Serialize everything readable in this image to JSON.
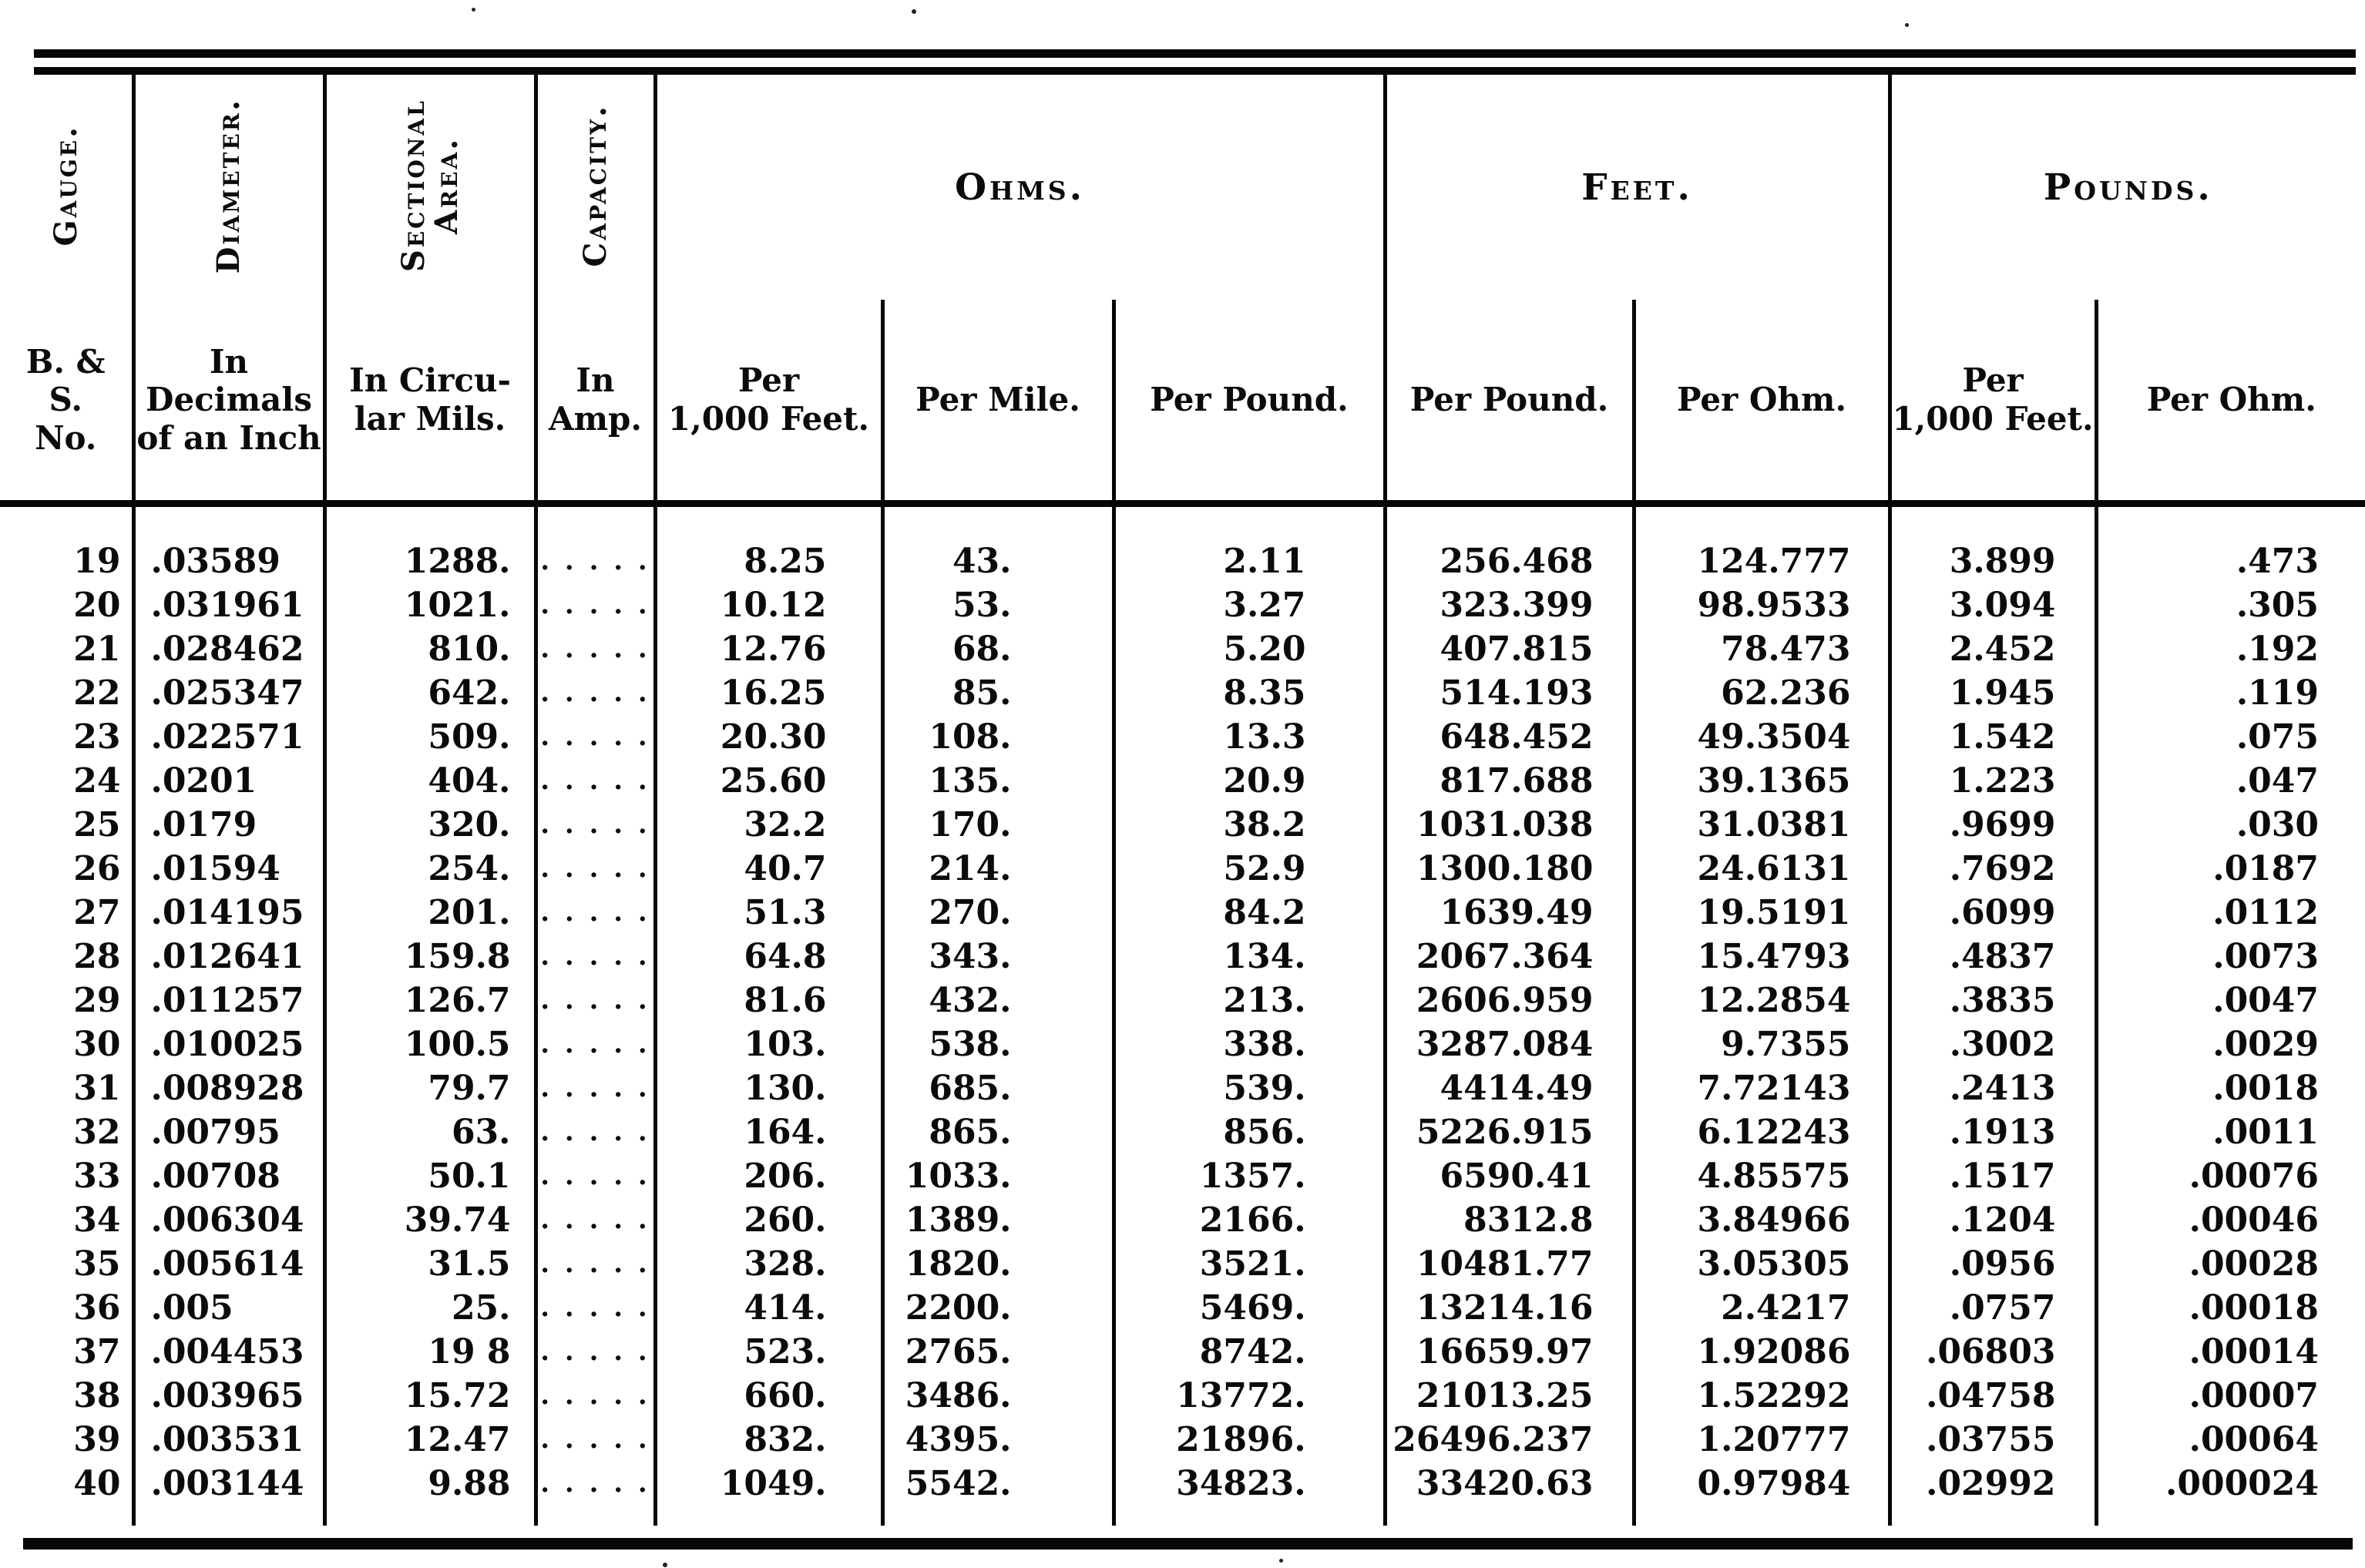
{
  "page": {
    "background": "#ffffff",
    "ink": "#0b0b0b"
  },
  "table": {
    "rotated_headers": [
      "Gauge.",
      "Diameter.",
      "Sectional Area.",
      "Capacity."
    ],
    "groups": [
      {
        "label": "Ohms.",
        "span": 3
      },
      {
        "label": "Feet.",
        "span": 2
      },
      {
        "label": "Pounds.",
        "span": 2
      }
    ],
    "sub_headers": [
      "B. &\nS.\nNo.",
      "In\nDecimals\nof an Inch",
      "In Circu-\nlar Mils.",
      "In\nAmp.",
      "Per\n1,000 Feet.",
      "Per Mile.",
      "Per Pound.",
      "Per Pound.",
      "Per Ohm.",
      "Per\n1,000 Feet.",
      "Per Ohm."
    ],
    "column_ids": [
      "gauge-number",
      "diameter-inches",
      "sectional-area-circular-mils",
      "capacity-amp",
      "ohms-per-1000-feet",
      "ohms-per-mile",
      "ohms-per-pound",
      "feet-per-pound",
      "feet-per-ohm",
      "pounds-per-1000-feet",
      "pounds-per-ohm"
    ],
    "capacity_placeholder": ". . . . .",
    "rows": [
      [
        "19",
        ".03589",
        "1288.",
        ". . . . .",
        "8.25",
        "43.",
        "2.11",
        "256.468",
        "124.777",
        "3.899",
        ".473"
      ],
      [
        "20",
        ".031961",
        "1021.",
        ". . . . .",
        "10.12",
        "53.",
        "3.27",
        "323.399",
        "98.9533",
        "3.094",
        ".305"
      ],
      [
        "21",
        ".028462",
        "810.",
        ". . . . .",
        "12.76",
        "68.",
        "5.20",
        "407.815",
        "78.473",
        "2.452",
        ".192"
      ],
      [
        "22",
        ".025347",
        "642.",
        ". . . . .",
        "16.25",
        "85.",
        "8.35",
        "514.193",
        "62.236",
        "1.945",
        ".119"
      ],
      [
        "23",
        ".022571",
        "509.",
        ". . . . .",
        "20.30",
        "108.",
        "13.3",
        "648.452",
        "49.3504",
        "1.542",
        ".075"
      ],
      [
        "24",
        ".0201",
        "404.",
        ". . . . .",
        "25.60",
        "135.",
        "20.9",
        "817.688",
        "39.1365",
        "1.223",
        ".047"
      ],
      [
        "25",
        ".0179",
        "320.",
        ". . . . .",
        "32.2",
        "170.",
        "38.2",
        "1031.038",
        "31.0381",
        ".9699",
        ".030"
      ],
      [
        "26",
        ".01594",
        "254.",
        ". . . . .",
        "40.7",
        "214.",
        "52.9",
        "1300.180",
        "24.6131",
        ".7692",
        ".0187"
      ],
      [
        "27",
        ".014195",
        "201.",
        ". . . . .",
        "51.3",
        "270.",
        "84.2",
        "1639.49",
        "19.5191",
        ".6099",
        ".0112"
      ],
      [
        "28",
        ".012641",
        "159.8",
        ". . . . .",
        "64.8",
        "343.",
        "134.",
        "2067.364",
        "15.4793",
        ".4837",
        ".0073"
      ],
      [
        "29",
        ".011257",
        "126.7",
        ". . . . .",
        "81.6",
        "432.",
        "213.",
        "2606.959",
        "12.2854",
        ".3835",
        ".0047"
      ],
      [
        "30",
        ".010025",
        "100.5",
        ". . . . .",
        "103.",
        "538.",
        "338.",
        "3287.084",
        "9.7355",
        ".3002",
        ".0029"
      ],
      [
        "31",
        ".008928",
        "79.7",
        ". . . . .",
        "130.",
        "685.",
        "539.",
        "4414.49",
        "7.72143",
        ".2413",
        ".0018"
      ],
      [
        "32",
        ".00795",
        "63.",
        ". . . . .",
        "164.",
        "865.",
        "856.",
        "5226.915",
        "6.12243",
        ".1913",
        ".0011"
      ],
      [
        "33",
        ".00708",
        "50.1",
        ". . . . .",
        "206.",
        "1033.",
        "1357.",
        "6590.41",
        "4.85575",
        ".1517",
        ".00076"
      ],
      [
        "34",
        ".006304",
        "39.74",
        ". . . . .",
        "260.",
        "1389.",
        "2166.",
        "8312.8",
        "3.84966",
        ".1204",
        ".00046"
      ],
      [
        "35",
        ".005614",
        "31.5",
        ". . . . .",
        "328.",
        "1820.",
        "3521.",
        "10481.77",
        "3.05305",
        ".0956",
        ".00028"
      ],
      [
        "36",
        ".005",
        "25.",
        ". . . . .",
        "414.",
        "2200.",
        "5469.",
        "13214.16",
        "2.4217",
        ".0757",
        ".00018"
      ],
      [
        "37",
        ".004453",
        "19 8",
        ". . . . .",
        "523.",
        "2765.",
        "8742.",
        "16659.97",
        "1.92086",
        ".06803",
        ".00014"
      ],
      [
        "38",
        ".003965",
        "15.72",
        ". . . . .",
        "660.",
        "3486.",
        "13772.",
        "21013.25",
        "1.52292",
        ".04758",
        ".00007"
      ],
      [
        "39",
        ".003531",
        "12.47",
        ". . . . .",
        "832.",
        "4395.",
        "21896.",
        "26496.237",
        "1.20777",
        ".03755",
        ".00064"
      ],
      [
        "40",
        ".003144",
        "9.88",
        ". . . . .",
        "1049.",
        "5542.",
        "34823.",
        "33420.63",
        "0.97984",
        ".02992",
        ".000024"
      ]
    ]
  }
}
